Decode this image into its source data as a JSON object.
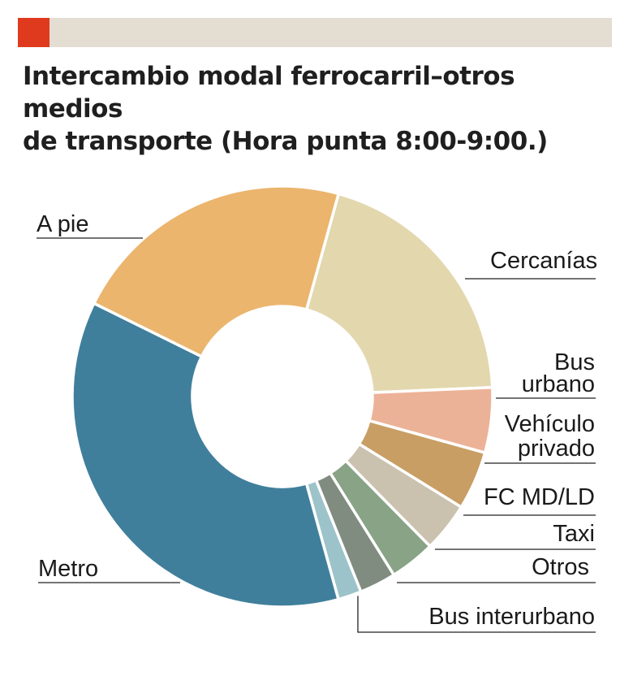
{
  "title_lines": [
    "Intercambio modal ferrocarril–otros medios",
    "de transporte (Hora punta 8:00-9:00.)"
  ],
  "colors": {
    "accent": "#e03a1e",
    "header_bar": "#e3ddd2",
    "separator": "#ffffff",
    "leader": "#222222"
  },
  "chart_data": {
    "type": "pie",
    "donut": true,
    "title": "Intercambio modal ferrocarril–otros medios de transporte (Hora punta 8:00-9:00.)",
    "units": "percent",
    "slices": [
      {
        "label": "Cercanías",
        "value": 20.0,
        "color": "#e3d7ae"
      },
      {
        "label": "Bus urbano",
        "value": 5.0,
        "color": "#ecb297"
      },
      {
        "label": "Vehículo privado",
        "value": 4.5,
        "color": "#c89e64"
      },
      {
        "label": "FC MD/LD",
        "value": 3.8,
        "color": "#cac1ae"
      },
      {
        "label": "Taxi",
        "value": 3.5,
        "color": "#88a386"
      },
      {
        "label": "Otros",
        "value": 2.8,
        "color": "#818c80"
      },
      {
        "label": "Bus interurbano",
        "value": 1.8,
        "color": "#9cc3c9"
      },
      {
        "label": "Metro",
        "value": 36.6,
        "color": "#407f9c"
      },
      {
        "label": "A pie",
        "value": 22.0,
        "color": "#ebb56e"
      }
    ]
  }
}
